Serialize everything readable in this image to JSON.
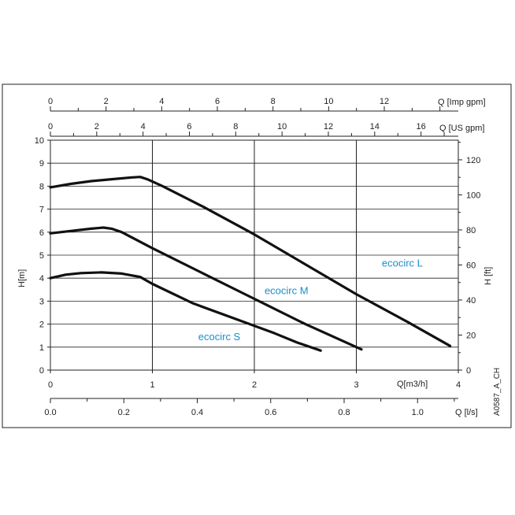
{
  "chart_data": {
    "type": "line",
    "code": "A0587_A_CH",
    "xlabel": "Q[m3/h]",
    "ylabel": "H[m]",
    "y2label": "H [ft]",
    "xlim": [
      0,
      4
    ],
    "ylim": [
      0,
      10
    ],
    "y2lim": [
      0,
      131.2
    ],
    "x_ticks": [
      "0",
      "1",
      "2",
      "3",
      "4"
    ],
    "y_ticks": [
      "0",
      "1",
      "2",
      "3",
      "4",
      "5",
      "6",
      "7",
      "8",
      "9",
      "10"
    ],
    "y2_ticks": [
      "0",
      "20",
      "40",
      "60",
      "80",
      "100",
      "120"
    ],
    "top_axes": [
      {
        "label": "Q [Imp gpm]",
        "max": 14.66,
        "ticks": [
          "0",
          "2",
          "4",
          "6",
          "8",
          "10",
          "12"
        ],
        "tick_values": [
          0,
          2,
          4,
          6,
          8,
          10,
          12
        ]
      },
      {
        "label": "Q [US gpm]",
        "max": 17.61,
        "ticks": [
          "0",
          "2",
          "4",
          "6",
          "8",
          "10",
          "12",
          "14",
          "16"
        ],
        "tick_values": [
          0,
          2,
          4,
          6,
          8,
          10,
          12,
          14,
          16
        ]
      }
    ],
    "bottom_axis": {
      "label": "Q [l/s]",
      "max": 1.111,
      "ticks": [
        "0.0",
        "0.2",
        "0.4",
        "0.6",
        "0.8",
        "1.0"
      ],
      "tick_values": [
        0,
        0.2,
        0.4,
        0.6,
        0.8,
        1.0
      ]
    },
    "grid": true,
    "series": [
      {
        "name": "ecocirc L",
        "label_at": [
          3.25,
          4.5
        ],
        "x": [
          0,
          0.2,
          0.4,
          0.6,
          0.8,
          0.88,
          0.95,
          1.1,
          1.5,
          2.0,
          2.5,
          3.0,
          3.5,
          3.92
        ],
        "y": [
          7.95,
          8.1,
          8.22,
          8.3,
          8.38,
          8.4,
          8.3,
          8.0,
          7.1,
          5.9,
          4.6,
          3.3,
          2.1,
          1.05
        ]
      },
      {
        "name": "ecocirc M",
        "label_at": [
          2.1,
          3.3
        ],
        "x": [
          0,
          0.2,
          0.4,
          0.52,
          0.6,
          0.7,
          1.0,
          1.5,
          2.0,
          2.5,
          3.05
        ],
        "y": [
          5.95,
          6.05,
          6.15,
          6.2,
          6.15,
          6.0,
          5.3,
          4.2,
          3.1,
          2.0,
          0.9
        ]
      },
      {
        "name": "ecocirc S",
        "label_at": [
          1.45,
          1.3
        ],
        "x": [
          0,
          0.15,
          0.3,
          0.5,
          0.7,
          0.88,
          1.0,
          1.4,
          1.8,
          2.2,
          2.42,
          2.65
        ],
        "y": [
          4.0,
          4.15,
          4.22,
          4.25,
          4.2,
          4.05,
          3.75,
          2.9,
          2.25,
          1.6,
          1.2,
          0.85
        ]
      }
    ]
  }
}
